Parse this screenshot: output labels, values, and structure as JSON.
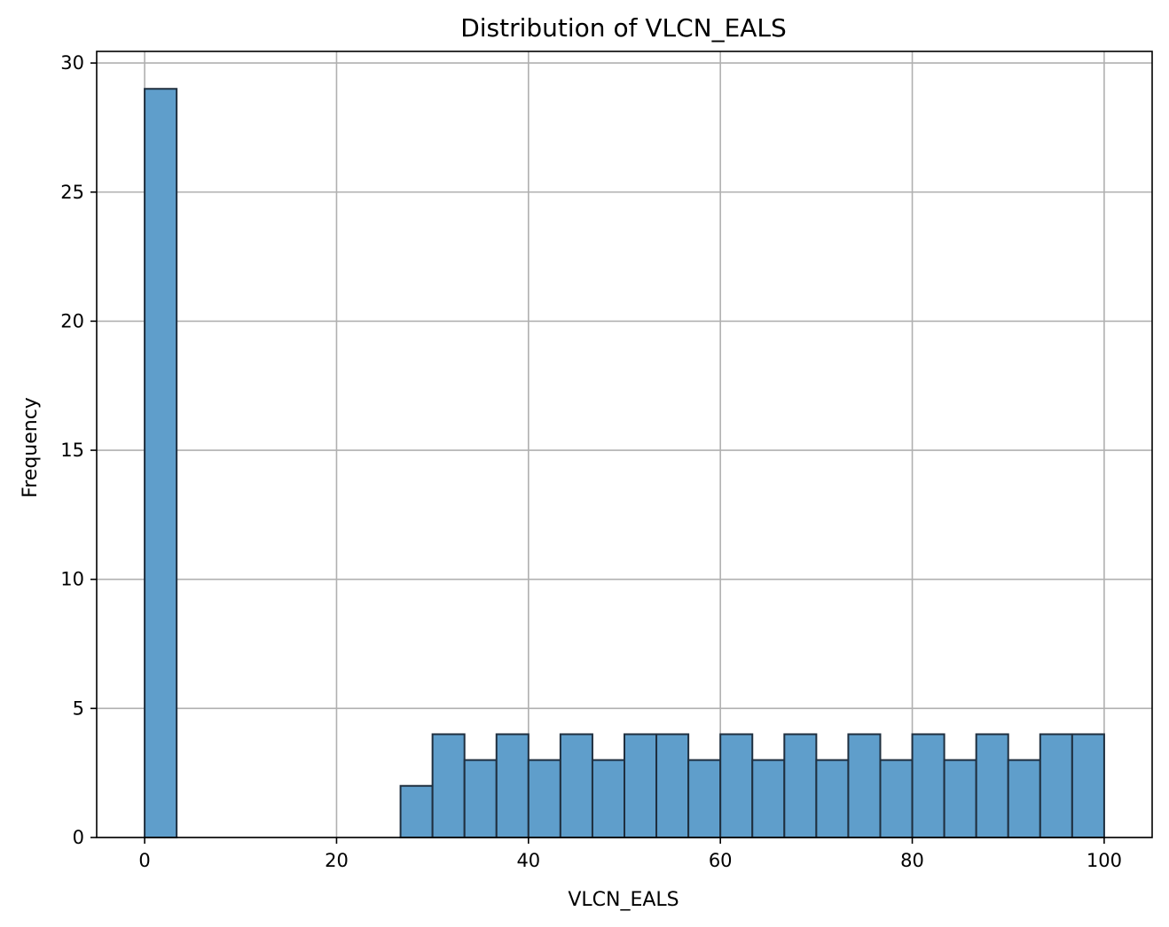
{
  "chart_data": {
    "type": "bar",
    "title": "Distribution of VLCN_EALS",
    "xlabel": "VLCN_EALS",
    "ylabel": "Frequency",
    "xlim": [
      -5,
      105
    ],
    "ylim": [
      0,
      30.45
    ],
    "xticks": [
      0,
      20,
      40,
      60,
      80,
      100
    ],
    "yticks": [
      0,
      5,
      10,
      15,
      20,
      25,
      30
    ],
    "grid": true,
    "bar_color": "#5f9ecb",
    "edge_color": "#1f2f3f",
    "bins": [
      {
        "start": 0.0,
        "end": 3.333,
        "value": 29
      },
      {
        "start": 3.333,
        "end": 6.667,
        "value": 0
      },
      {
        "start": 6.667,
        "end": 10.0,
        "value": 0
      },
      {
        "start": 10.0,
        "end": 13.333,
        "value": 0
      },
      {
        "start": 13.333,
        "end": 16.667,
        "value": 0
      },
      {
        "start": 16.667,
        "end": 20.0,
        "value": 0
      },
      {
        "start": 20.0,
        "end": 23.333,
        "value": 0
      },
      {
        "start": 23.333,
        "end": 26.667,
        "value": 0
      },
      {
        "start": 26.667,
        "end": 30.0,
        "value": 2
      },
      {
        "start": 30.0,
        "end": 33.333,
        "value": 4
      },
      {
        "start": 33.333,
        "end": 36.667,
        "value": 3
      },
      {
        "start": 36.667,
        "end": 40.0,
        "value": 4
      },
      {
        "start": 40.0,
        "end": 43.333,
        "value": 3
      },
      {
        "start": 43.333,
        "end": 46.667,
        "value": 4
      },
      {
        "start": 46.667,
        "end": 50.0,
        "value": 3
      },
      {
        "start": 50.0,
        "end": 53.333,
        "value": 4
      },
      {
        "start": 53.333,
        "end": 56.667,
        "value": 4
      },
      {
        "start": 56.667,
        "end": 60.0,
        "value": 3
      },
      {
        "start": 60.0,
        "end": 63.333,
        "value": 4
      },
      {
        "start": 63.333,
        "end": 66.667,
        "value": 3
      },
      {
        "start": 66.667,
        "end": 70.0,
        "value": 4
      },
      {
        "start": 70.0,
        "end": 73.333,
        "value": 3
      },
      {
        "start": 73.333,
        "end": 76.667,
        "value": 4
      },
      {
        "start": 76.667,
        "end": 80.0,
        "value": 3
      },
      {
        "start": 80.0,
        "end": 83.333,
        "value": 4
      },
      {
        "start": 83.333,
        "end": 86.667,
        "value": 3
      },
      {
        "start": 86.667,
        "end": 90.0,
        "value": 4
      },
      {
        "start": 90.0,
        "end": 93.333,
        "value": 3
      },
      {
        "start": 93.333,
        "end": 96.667,
        "value": 4
      },
      {
        "start": 96.667,
        "end": 100.0,
        "value": 4
      }
    ]
  }
}
